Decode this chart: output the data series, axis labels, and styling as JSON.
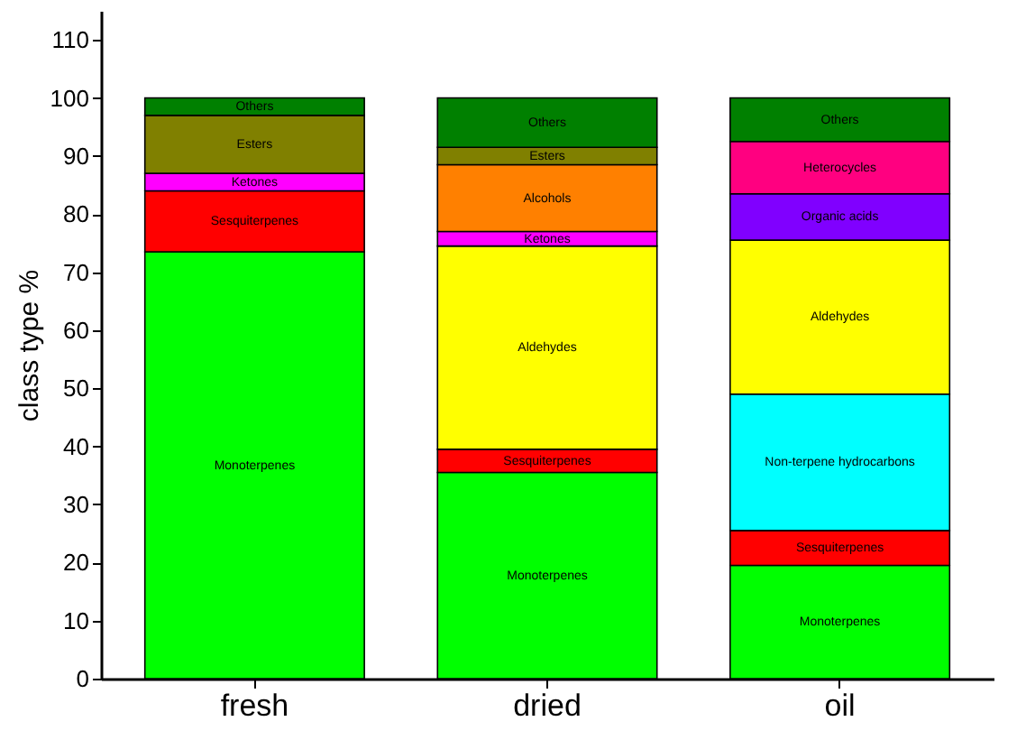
{
  "chart_data": {
    "type": "bar",
    "stacked": true,
    "ylabel": "class type %",
    "categories": [
      "fresh",
      "dried",
      "oil"
    ],
    "series": [
      {
        "name": "Monoterpenes",
        "color": "#00ff00",
        "values": [
          73.5,
          35.5,
          19.5
        ]
      },
      {
        "name": "Sesquiterpenes",
        "color": "#ff0000",
        "values": [
          10.5,
          4,
          6
        ]
      },
      {
        "name": "Non-terpene hydrocarbons",
        "color": "#00ffff",
        "values": [
          null,
          null,
          23.5
        ]
      },
      {
        "name": "Aldehydes",
        "color": "#ffff00",
        "values": [
          null,
          35,
          26.5
        ]
      },
      {
        "name": "Ketones",
        "color": "#ff00ff",
        "values": [
          3,
          2.5,
          null
        ]
      },
      {
        "name": "Organic acids",
        "color": "#8000ff",
        "values": [
          null,
          null,
          8
        ]
      },
      {
        "name": "Alcohols",
        "color": "#ff8000",
        "values": [
          null,
          11.5,
          null
        ]
      },
      {
        "name": "Heterocycles",
        "color": "#ff0080",
        "values": [
          null,
          null,
          9
        ]
      },
      {
        "name": "Esters",
        "color": "#808000",
        "values": [
          10,
          3,
          null
        ]
      },
      {
        "name": "Others",
        "color": "#008000",
        "values": [
          3,
          8.5,
          7.5
        ]
      }
    ],
    "ylim": [
      0,
      115
    ],
    "yticks": [
      0,
      10,
      20,
      30,
      40,
      50,
      60,
      70,
      80,
      90,
      100,
      110
    ],
    "legend": false,
    "grid": false
  }
}
